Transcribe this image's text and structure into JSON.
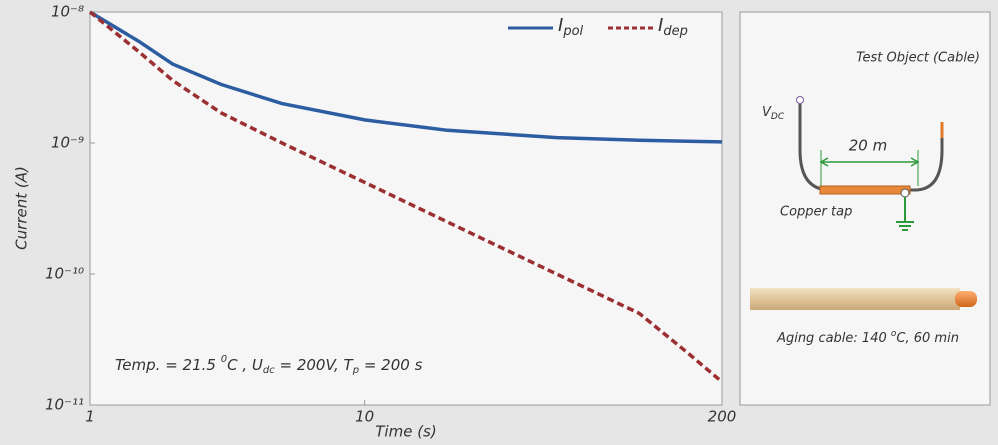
{
  "chart_data": {
    "type": "line",
    "xlabel": "Time (s)",
    "ylabel": "Current (A)",
    "x": [
      1,
      1.5,
      2,
      3,
      5,
      10,
      20,
      50,
      100,
      150,
      200
    ],
    "series": [
      {
        "name": "Ipol",
        "color": "#2d5da1",
        "dash": false,
        "values": [
          1e-08,
          6e-09,
          4e-09,
          2.8e-09,
          2e-09,
          1.5e-09,
          1.25e-09,
          1.1e-09,
          1.05e-09,
          1.03e-09,
          1.02e-09
        ]
      },
      {
        "name": "Idep",
        "color": "#9b2f31",
        "dash": true,
        "values": [
          1e-08,
          5e-09,
          3e-09,
          1.7e-09,
          1e-09,
          5e-10,
          2.5e-10,
          1e-10,
          5e-11,
          2.5e-11,
          1.5e-11
        ]
      }
    ],
    "xlim": [
      1,
      200
    ],
    "xticks": [
      1,
      10,
      200
    ],
    "log_x": true,
    "ylim": [
      1e-11,
      1e-08
    ],
    "log_y": true,
    "yticks": [
      {
        "value": 1e-08,
        "label": "10⁻⁸"
      },
      {
        "value": 1e-09,
        "label": "10⁻⁹"
      },
      {
        "value": 1e-10,
        "label": "10⁻¹⁰"
      },
      {
        "value": 1e-11,
        "label": "10⁻¹¹"
      }
    ],
    "legend": "top-right",
    "annotation": [
      "Temp. = 21.5 ",
      "0",
      "C , U",
      "dc",
      " = 200V, T",
      "p",
      " = 200 s"
    ]
  },
  "diagram": {
    "title": "Test Object (Cable)",
    "vdc": [
      "V",
      "DC"
    ],
    "length": "20 m",
    "tap": "Copper tap",
    "aging": [
      "Aging cable: 140 ",
      "o",
      "C, 60 min"
    ]
  }
}
